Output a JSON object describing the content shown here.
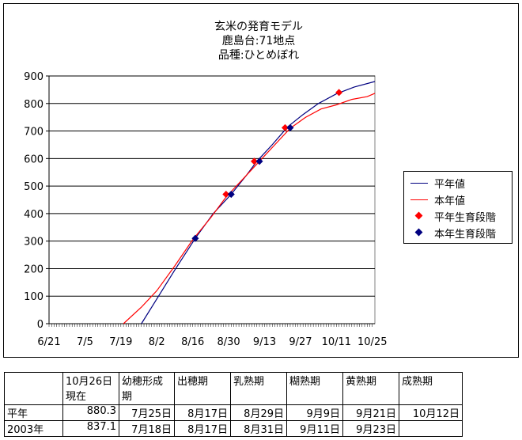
{
  "chart_data": {
    "type": "line",
    "title": [
      "玄米の発育モデル",
      "鹿島台:71地点",
      "品種:ひとめぼれ"
    ],
    "x_ticks": [
      "6/21",
      "7/5",
      "7/19",
      "8/2",
      "8/16",
      "8/30",
      "9/13",
      "9/27",
      "10/11",
      "10/25"
    ],
    "x_tick_dates": [
      "2003-06-21",
      "2003-07-05",
      "2003-07-19",
      "2003-08-02",
      "2003-08-16",
      "2003-08-30",
      "2003-09-13",
      "2003-09-27",
      "2003-10-11",
      "2003-10-25"
    ],
    "xlim": [
      "2003-06-21",
      "2003-10-26"
    ],
    "ylim": [
      0,
      900
    ],
    "y_ticks": [
      0,
      100,
      200,
      300,
      400,
      500,
      600,
      700,
      800,
      900
    ],
    "grid": "horizontal",
    "legend_position": "right",
    "series": [
      {
        "name": "平年値",
        "color": "#000080",
        "kind": "line",
        "points": [
          [
            "2003-07-27",
            0
          ],
          [
            "2003-08-02",
            90
          ],
          [
            "2003-08-09",
            195
          ],
          [
            "2003-08-17",
            310
          ],
          [
            "2003-08-24",
            400
          ],
          [
            "2003-08-31",
            470
          ],
          [
            "2003-09-06",
            540
          ],
          [
            "2003-09-10",
            590
          ],
          [
            "2003-09-16",
            650
          ],
          [
            "2003-09-22",
            715
          ],
          [
            "2003-09-28",
            760
          ],
          [
            "2003-10-04",
            800
          ],
          [
            "2003-10-11",
            835
          ],
          [
            "2003-10-18",
            860
          ],
          [
            "2003-10-26",
            880
          ]
        ]
      },
      {
        "name": "本年値",
        "color": "#ff0000",
        "kind": "line",
        "points": [
          [
            "2003-07-20",
            0
          ],
          [
            "2003-07-27",
            60
          ],
          [
            "2003-08-02",
            120
          ],
          [
            "2003-08-09",
            210
          ],
          [
            "2003-08-16",
            305
          ],
          [
            "2003-08-23",
            385
          ],
          [
            "2003-08-29",
            460
          ],
          [
            "2003-09-05",
            530
          ],
          [
            "2003-09-11",
            590
          ],
          [
            "2003-09-17",
            650
          ],
          [
            "2003-09-23",
            710
          ],
          [
            "2003-09-29",
            750
          ],
          [
            "2003-10-05",
            780
          ],
          [
            "2003-10-11",
            795
          ],
          [
            "2003-10-17",
            815
          ],
          [
            "2003-10-23",
            825
          ],
          [
            "2003-10-26",
            837
          ]
        ]
      },
      {
        "name": "平年生育段階",
        "color": "#ff0000",
        "kind": "marker",
        "points": [
          [
            "2003-08-29",
            470
          ],
          [
            "2003-09-09",
            590
          ],
          [
            "2003-09-21",
            712
          ],
          [
            "2003-10-12",
            840
          ]
        ]
      },
      {
        "name": "本年生育段階",
        "color": "#000080",
        "kind": "marker",
        "points": [
          [
            "2003-08-17",
            310
          ],
          [
            "2003-08-31",
            470
          ],
          [
            "2003-09-11",
            590
          ],
          [
            "2003-09-23",
            712
          ]
        ]
      }
    ]
  },
  "table": {
    "header": [
      "",
      "10月26日現在",
      "幼穂形成期",
      "出穂期",
      "乳熟期",
      "糊熟期",
      "黄熟期",
      "成熟期"
    ],
    "rows": [
      [
        "平年",
        "880.3",
        "7月25日",
        "8月17日",
        "8月29日",
        "9月9日",
        "9月21日",
        "10月12日"
      ],
      [
        "2003年",
        "837.1",
        "7月18日",
        "8月17日",
        "8月31日",
        "9月11日",
        "9月23日",
        ""
      ]
    ]
  }
}
